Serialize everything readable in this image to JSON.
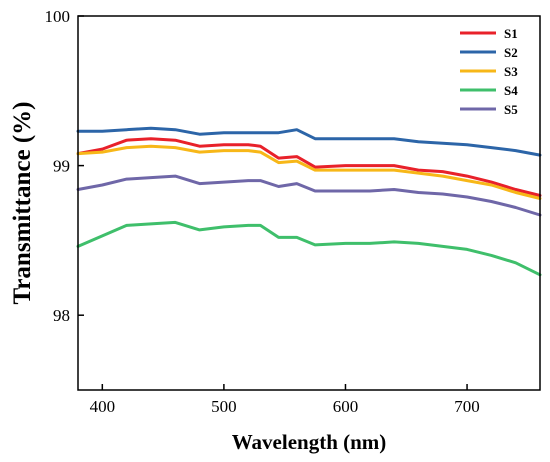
{
  "chart_data": {
    "type": "line",
    "xlabel": "Wavelength (nm)",
    "ylabel": "Transmittance (%)",
    "xlim": [
      380,
      760
    ],
    "ylim": [
      97.5,
      100
    ],
    "xticks": [
      400,
      500,
      600,
      700
    ],
    "yticks": [
      98,
      99,
      100
    ],
    "grid": false,
    "legend_position": "top-right",
    "x": [
      380,
      400,
      420,
      440,
      460,
      480,
      500,
      520,
      530,
      545,
      560,
      575,
      600,
      620,
      640,
      660,
      680,
      700,
      720,
      740,
      760
    ],
    "series": [
      {
        "name": "S1",
        "color": "#e8212a",
        "values": [
          99.08,
          99.11,
          99.17,
          99.18,
          99.17,
          99.13,
          99.14,
          99.14,
          99.13,
          99.05,
          99.06,
          98.99,
          99.0,
          99.0,
          99.0,
          98.97,
          98.96,
          98.93,
          98.89,
          98.84,
          98.8
        ]
      },
      {
        "name": "S2",
        "color": "#2c65a8",
        "values": [
          99.23,
          99.23,
          99.24,
          99.25,
          99.24,
          99.21,
          99.22,
          99.22,
          99.22,
          99.22,
          99.24,
          99.18,
          99.18,
          99.18,
          99.18,
          99.16,
          99.15,
          99.14,
          99.12,
          99.1,
          99.07
        ]
      },
      {
        "name": "S3",
        "color": "#f7b718",
        "values": [
          99.08,
          99.09,
          99.12,
          99.13,
          99.12,
          99.09,
          99.1,
          99.1,
          99.09,
          99.02,
          99.03,
          98.97,
          98.97,
          98.97,
          98.97,
          98.95,
          98.93,
          98.9,
          98.87,
          98.82,
          98.78
        ]
      },
      {
        "name": "S4",
        "color": "#3fbf6b",
        "values": [
          98.46,
          98.53,
          98.6,
          98.61,
          98.62,
          98.57,
          98.59,
          98.6,
          98.6,
          98.52,
          98.52,
          98.47,
          98.48,
          98.48,
          98.49,
          98.48,
          98.46,
          98.44,
          98.4,
          98.35,
          98.27
        ]
      },
      {
        "name": "S5",
        "color": "#6f67a8",
        "values": [
          98.84,
          98.87,
          98.91,
          98.92,
          98.93,
          98.88,
          98.89,
          98.9,
          98.9,
          98.86,
          98.88,
          98.83,
          98.83,
          98.83,
          98.84,
          98.82,
          98.81,
          98.79,
          98.76,
          98.72,
          98.67
        ]
      }
    ]
  }
}
